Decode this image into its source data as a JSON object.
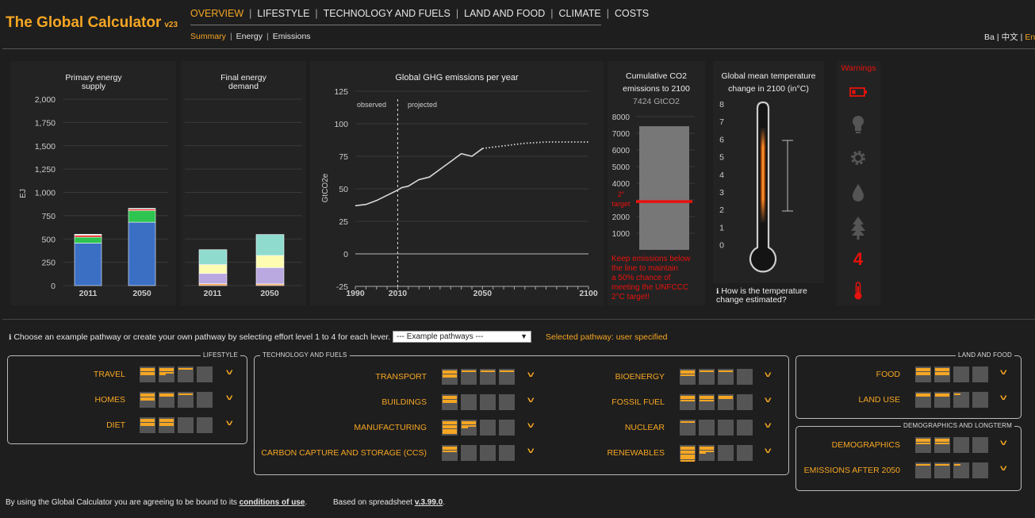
{
  "header": {
    "title": "The Global Calculator",
    "version": "v23",
    "nav": [
      "OVERVIEW",
      "LIFESTYLE",
      "TECHNOLOGY AND FUELS",
      "LAND AND FOOD",
      "CLIMATE",
      "COSTS"
    ],
    "subnav": [
      "Summary",
      "Energy",
      "Emissions"
    ],
    "languages": [
      "Ba",
      "中文",
      "En"
    ]
  },
  "charts": {
    "primary": {
      "title1": "Primary energy",
      "title2": "supply",
      "ylabel": "EJ",
      "yticks": [
        "2,000",
        "1,750",
        "1,500",
        "1,250",
        "1,000",
        "750",
        "500",
        "250",
        "0"
      ],
      "xticks": [
        "2011",
        "2050"
      ]
    },
    "final": {
      "title1": "Final energy",
      "title2": "demand",
      "xticks": [
        "2011",
        "2050"
      ]
    },
    "ghg": {
      "title": "Global GHG emissions per year",
      "ylabel": "GtCO2e",
      "yticks": [
        "125",
        "100",
        "75",
        "50",
        "25",
        "0",
        "-25"
      ],
      "xticks": [
        "1990",
        "2010",
        "2050",
        "2100"
      ],
      "observed": "observed",
      "projected": "projected"
    },
    "cumulative": {
      "title1": "Cumulative CO2",
      "title2": "emissions to 2100",
      "value": "7424 GtCO2",
      "yticks": [
        "8000",
        "7000",
        "6000",
        "5000",
        "4000",
        "3000",
        "2000",
        "1000"
      ],
      "target1": "2°",
      "target2": "target",
      "note": [
        "Keep emissions below",
        "the line to maintain",
        "a 50% chance of",
        "meeting the UNFCCC",
        "2°C target!"
      ]
    },
    "temperature": {
      "title1": "Global mean temperature",
      "title2": "change in 2100 (in°C)",
      "ticks": [
        "8",
        "7",
        "6",
        "5",
        "4",
        "3",
        "2",
        "1",
        "0"
      ],
      "how1": "How is the temperature",
      "how2": "change estimated?"
    },
    "warnings": {
      "title": "Warnings",
      "count": "4",
      "icons": [
        "battery-icon",
        "lightbulb-icon",
        "gear-icon",
        "water-drop-icon",
        "tree-icon",
        "thermometer-icon"
      ]
    }
  },
  "chart_data": [
    {
      "type": "bar",
      "title": "Primary energy supply",
      "ylabel": "EJ",
      "categories": [
        "2011",
        "2050"
      ],
      "ylim": [
        0,
        2000
      ],
      "series": [
        {
          "values": [
            455,
            680
          ]
        },
        {
          "values": [
            65,
            125
          ]
        },
        {
          "values": [
            20,
            15
          ]
        },
        {
          "values": [
            10,
            8
          ]
        }
      ]
    },
    {
      "type": "bar",
      "title": "Final energy demand",
      "categories": [
        "2011",
        "2050"
      ],
      "ylim": [
        0,
        2000
      ],
      "series": [
        {
          "values": [
            20,
            18
          ]
        },
        {
          "values": [
            110,
            175
          ]
        },
        {
          "values": [
            95,
            130
          ]
        },
        {
          "values": [
            160,
            225
          ]
        }
      ]
    },
    {
      "type": "line",
      "title": "Global GHG emissions per year",
      "ylabel": "GtCO2e",
      "xlim": [
        1990,
        2100
      ],
      "ylim": [
        -25,
        125
      ],
      "x": [
        1990,
        1995,
        2000,
        2005,
        2010,
        2012,
        2015,
        2020,
        2025,
        2030,
        2035,
        2040,
        2045,
        2050,
        2055,
        2060,
        2070,
        2080,
        2090,
        2100
      ],
      "values": [
        37,
        38,
        41,
        45,
        49,
        51,
        52,
        57,
        59,
        65,
        71,
        77,
        75,
        81,
        82,
        83,
        85,
        86,
        86,
        86
      ]
    },
    {
      "type": "bar",
      "title": "Cumulative CO2 emissions to 2100",
      "ylim": [
        0,
        8000
      ],
      "values": [
        7424
      ],
      "target": 2900
    }
  ],
  "levers_intro": "Choose an example pathway or create your own pathway by selecting effort level 1 to 4 for each lever.",
  "pathway_select": "--- Example pathways ---",
  "selected_pathway": "Selected pathway: user specified",
  "groups": {
    "lifestyle": {
      "title": "LIFESTYLE",
      "levers": [
        "TRAVEL",
        "HOMES",
        "DIET"
      ]
    },
    "tech": {
      "title": "TECHNOLOGY AND FUELS",
      "left": [
        "TRANSPORT",
        "BUILDINGS",
        "MANUFACTURING",
        "CARBON CAPTURE AND STORAGE (CCS)"
      ],
      "right": [
        "BIOENERGY",
        "FOSSIL FUEL",
        "NUCLEAR",
        "RENEWABLES"
      ]
    },
    "land": {
      "title": "LAND AND FOOD",
      "levers": [
        "FOOD",
        "LAND USE"
      ]
    },
    "demo": {
      "title": "DEMOGRAPHICS AND LONGTERM",
      "levers": [
        "DEMOGRAPHICS",
        "EMISSIONS AFTER 2050"
      ]
    }
  },
  "footer": {
    "agree": "By using the Global Calculator you are agreeing to be bound to its",
    "conditions": "conditions of use",
    "period": ".",
    "based": "Based on spreadsheet",
    "version": "v.3.99.0",
    "period2": "."
  },
  "colors": {
    "accent": "#f5a623",
    "warning": "#e8120c",
    "blue": "#3a6fc4",
    "green": "#2ec450"
  }
}
